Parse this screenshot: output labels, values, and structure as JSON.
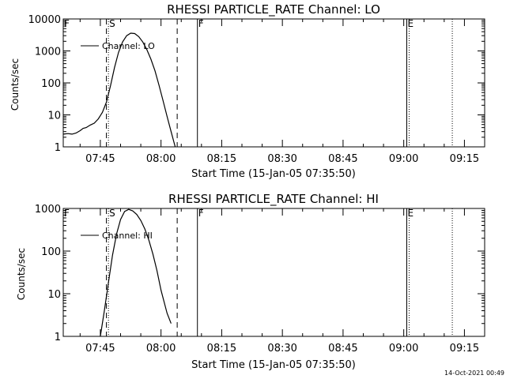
{
  "footer_timestamp": "14-Oct-2021 00:49",
  "chart_data": [
    {
      "type": "line",
      "title": "RHESSI PARTICLE_RATE Channel: LO",
      "xlabel": "Start Time (15-Jan-05 07:35:50)",
      "ylabel": "Counts/sec",
      "y_scale": "log",
      "ylim": [
        1,
        10000
      ],
      "y_ticks": [
        1,
        10,
        100,
        1000,
        10000
      ],
      "y_tick_labels": [
        "1",
        "10",
        "100",
        "1000",
        "10000"
      ],
      "xlim": [
        "07:35:50",
        "09:20:00"
      ],
      "x_ticks": [
        "07:45",
        "08:00",
        "08:15",
        "08:30",
        "08:45",
        "09:00",
        "09:15"
      ],
      "legend": {
        "placement": "top-left",
        "entries": [
          "Channel: LO"
        ]
      },
      "series": [
        {
          "name": "Channel: LO",
          "x": [
            "07:35:50",
            "07:37:00",
            "07:38:00",
            "07:39:00",
            "07:40:00",
            "07:40:45",
            "07:41:30",
            "07:42:30",
            "07:43:30",
            "07:44:30",
            "07:45:30",
            "07:46:30",
            "07:47:30",
            "07:48:30",
            "07:49:30",
            "07:50:30",
            "07:51:30",
            "07:52:30",
            "07:53:30",
            "07:54:30",
            "07:55:30",
            "07:56:30",
            "07:57:30",
            "07:58:30",
            "07:59:30",
            "08:00:30",
            "08:01:30",
            "08:02:30",
            "08:03:30"
          ],
          "values": [
            2.5,
            2.6,
            2.5,
            2.7,
            3.2,
            3.8,
            4.0,
            4.8,
            5.5,
            7.5,
            12,
            25,
            80,
            300,
            900,
            1900,
            3000,
            3600,
            3500,
            2800,
            1900,
            1100,
            550,
            240,
            85,
            28,
            9,
            3,
            1
          ]
        }
      ],
      "annotations": [
        {
          "label": "F",
          "time": "07:35:50",
          "style": "solid"
        },
        {
          "label": "S",
          "time": "07:47:00",
          "style": "dotted"
        },
        {
          "label": "",
          "time": "08:04:00",
          "style": "dashed"
        },
        {
          "label": "F",
          "time": "08:09:00",
          "style": "solid"
        },
        {
          "label": "E",
          "time": "09:00:45",
          "style": "solid"
        },
        {
          "label": "",
          "time": "09:01:20",
          "style": "dotted"
        },
        {
          "label": "",
          "time": "09:12:00",
          "style": "dotted"
        }
      ],
      "highlights": [
        {
          "time": "07:46:30",
          "style": "dashed"
        }
      ]
    },
    {
      "type": "line",
      "title": "RHESSI PARTICLE_RATE Channel: HI",
      "xlabel": "Start Time (15-Jan-05 07:35:50)",
      "ylabel": "Counts/sec",
      "y_scale": "log",
      "ylim": [
        1,
        1000
      ],
      "y_ticks": [
        1,
        10,
        100,
        1000
      ],
      "y_tick_labels": [
        "1",
        "10",
        "100",
        "1000"
      ],
      "xlim": [
        "07:35:50",
        "09:20:00"
      ],
      "x_ticks": [
        "07:45",
        "08:00",
        "08:15",
        "08:30",
        "08:45",
        "09:00",
        "09:15"
      ],
      "legend": {
        "placement": "top-left",
        "entries": [
          "Channel: HI"
        ]
      },
      "series": [
        {
          "name": "Channel: HI",
          "x": [
            "07:45:00",
            "07:46:00",
            "07:47:00",
            "07:48:00",
            "07:49:00",
            "07:50:00",
            "07:51:00",
            "07:52:00",
            "07:53:00",
            "07:54:00",
            "07:55:00",
            "07:56:00",
            "07:57:00",
            "07:58:00",
            "07:59:00",
            "08:00:00",
            "08:01:30",
            "08:02:30"
          ],
          "values": [
            1,
            4,
            18,
            80,
            250,
            550,
            850,
            950,
            880,
            720,
            520,
            330,
            180,
            85,
            35,
            12,
            3.5,
            2
          ]
        }
      ],
      "annotations": [
        {
          "label": "F",
          "time": "07:35:50",
          "style": "solid"
        },
        {
          "label": "S",
          "time": "07:47:00",
          "style": "dotted"
        },
        {
          "label": "",
          "time": "08:04:00",
          "style": "dashed"
        },
        {
          "label": "F",
          "time": "08:09:00",
          "style": "solid"
        },
        {
          "label": "E",
          "time": "09:00:45",
          "style": "solid"
        },
        {
          "label": "",
          "time": "09:01:20",
          "style": "dotted"
        },
        {
          "label": "",
          "time": "09:12:00",
          "style": "dotted"
        }
      ],
      "highlights": [
        {
          "time": "07:46:30",
          "style": "dashed"
        }
      ]
    }
  ]
}
